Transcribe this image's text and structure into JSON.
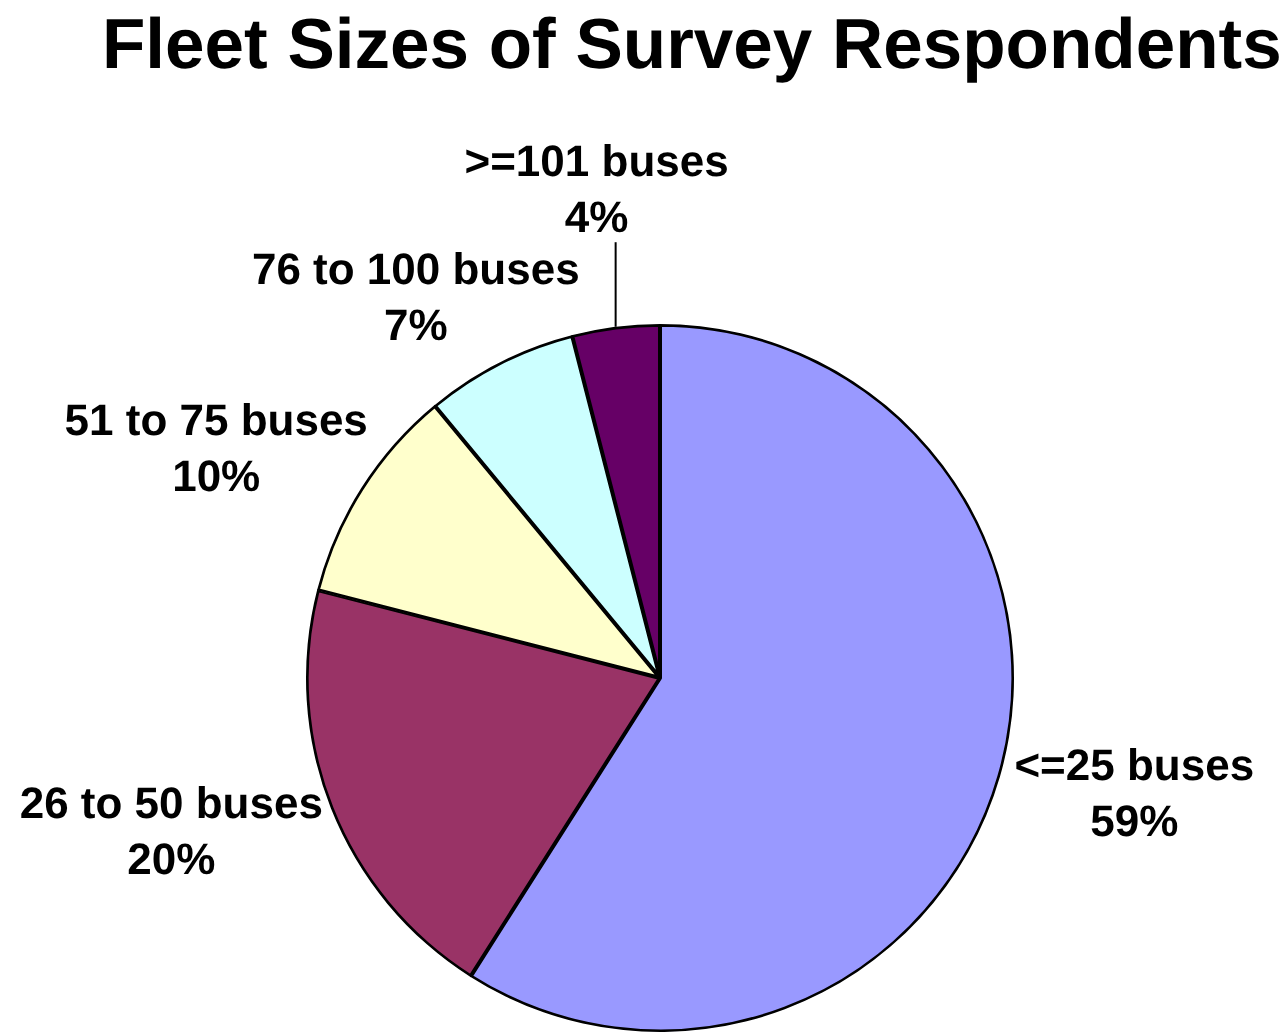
{
  "chart_data": {
    "type": "pie",
    "title": "Fleet Sizes of Survey Respondents",
    "categories": [
      "<=25 buses",
      "26 to 50 buses",
      "51 to 75 buses",
      "76 to 100 buses",
      ">=101 buses"
    ],
    "values": [
      59,
      20,
      10,
      7,
      4
    ],
    "colors": [
      "#9999ff",
      "#993366",
      "#ffffcc",
      "#ccffff",
      "#660066"
    ],
    "value_labels": [
      "59%",
      "20%",
      "10%",
      "7%",
      "4%"
    ]
  }
}
